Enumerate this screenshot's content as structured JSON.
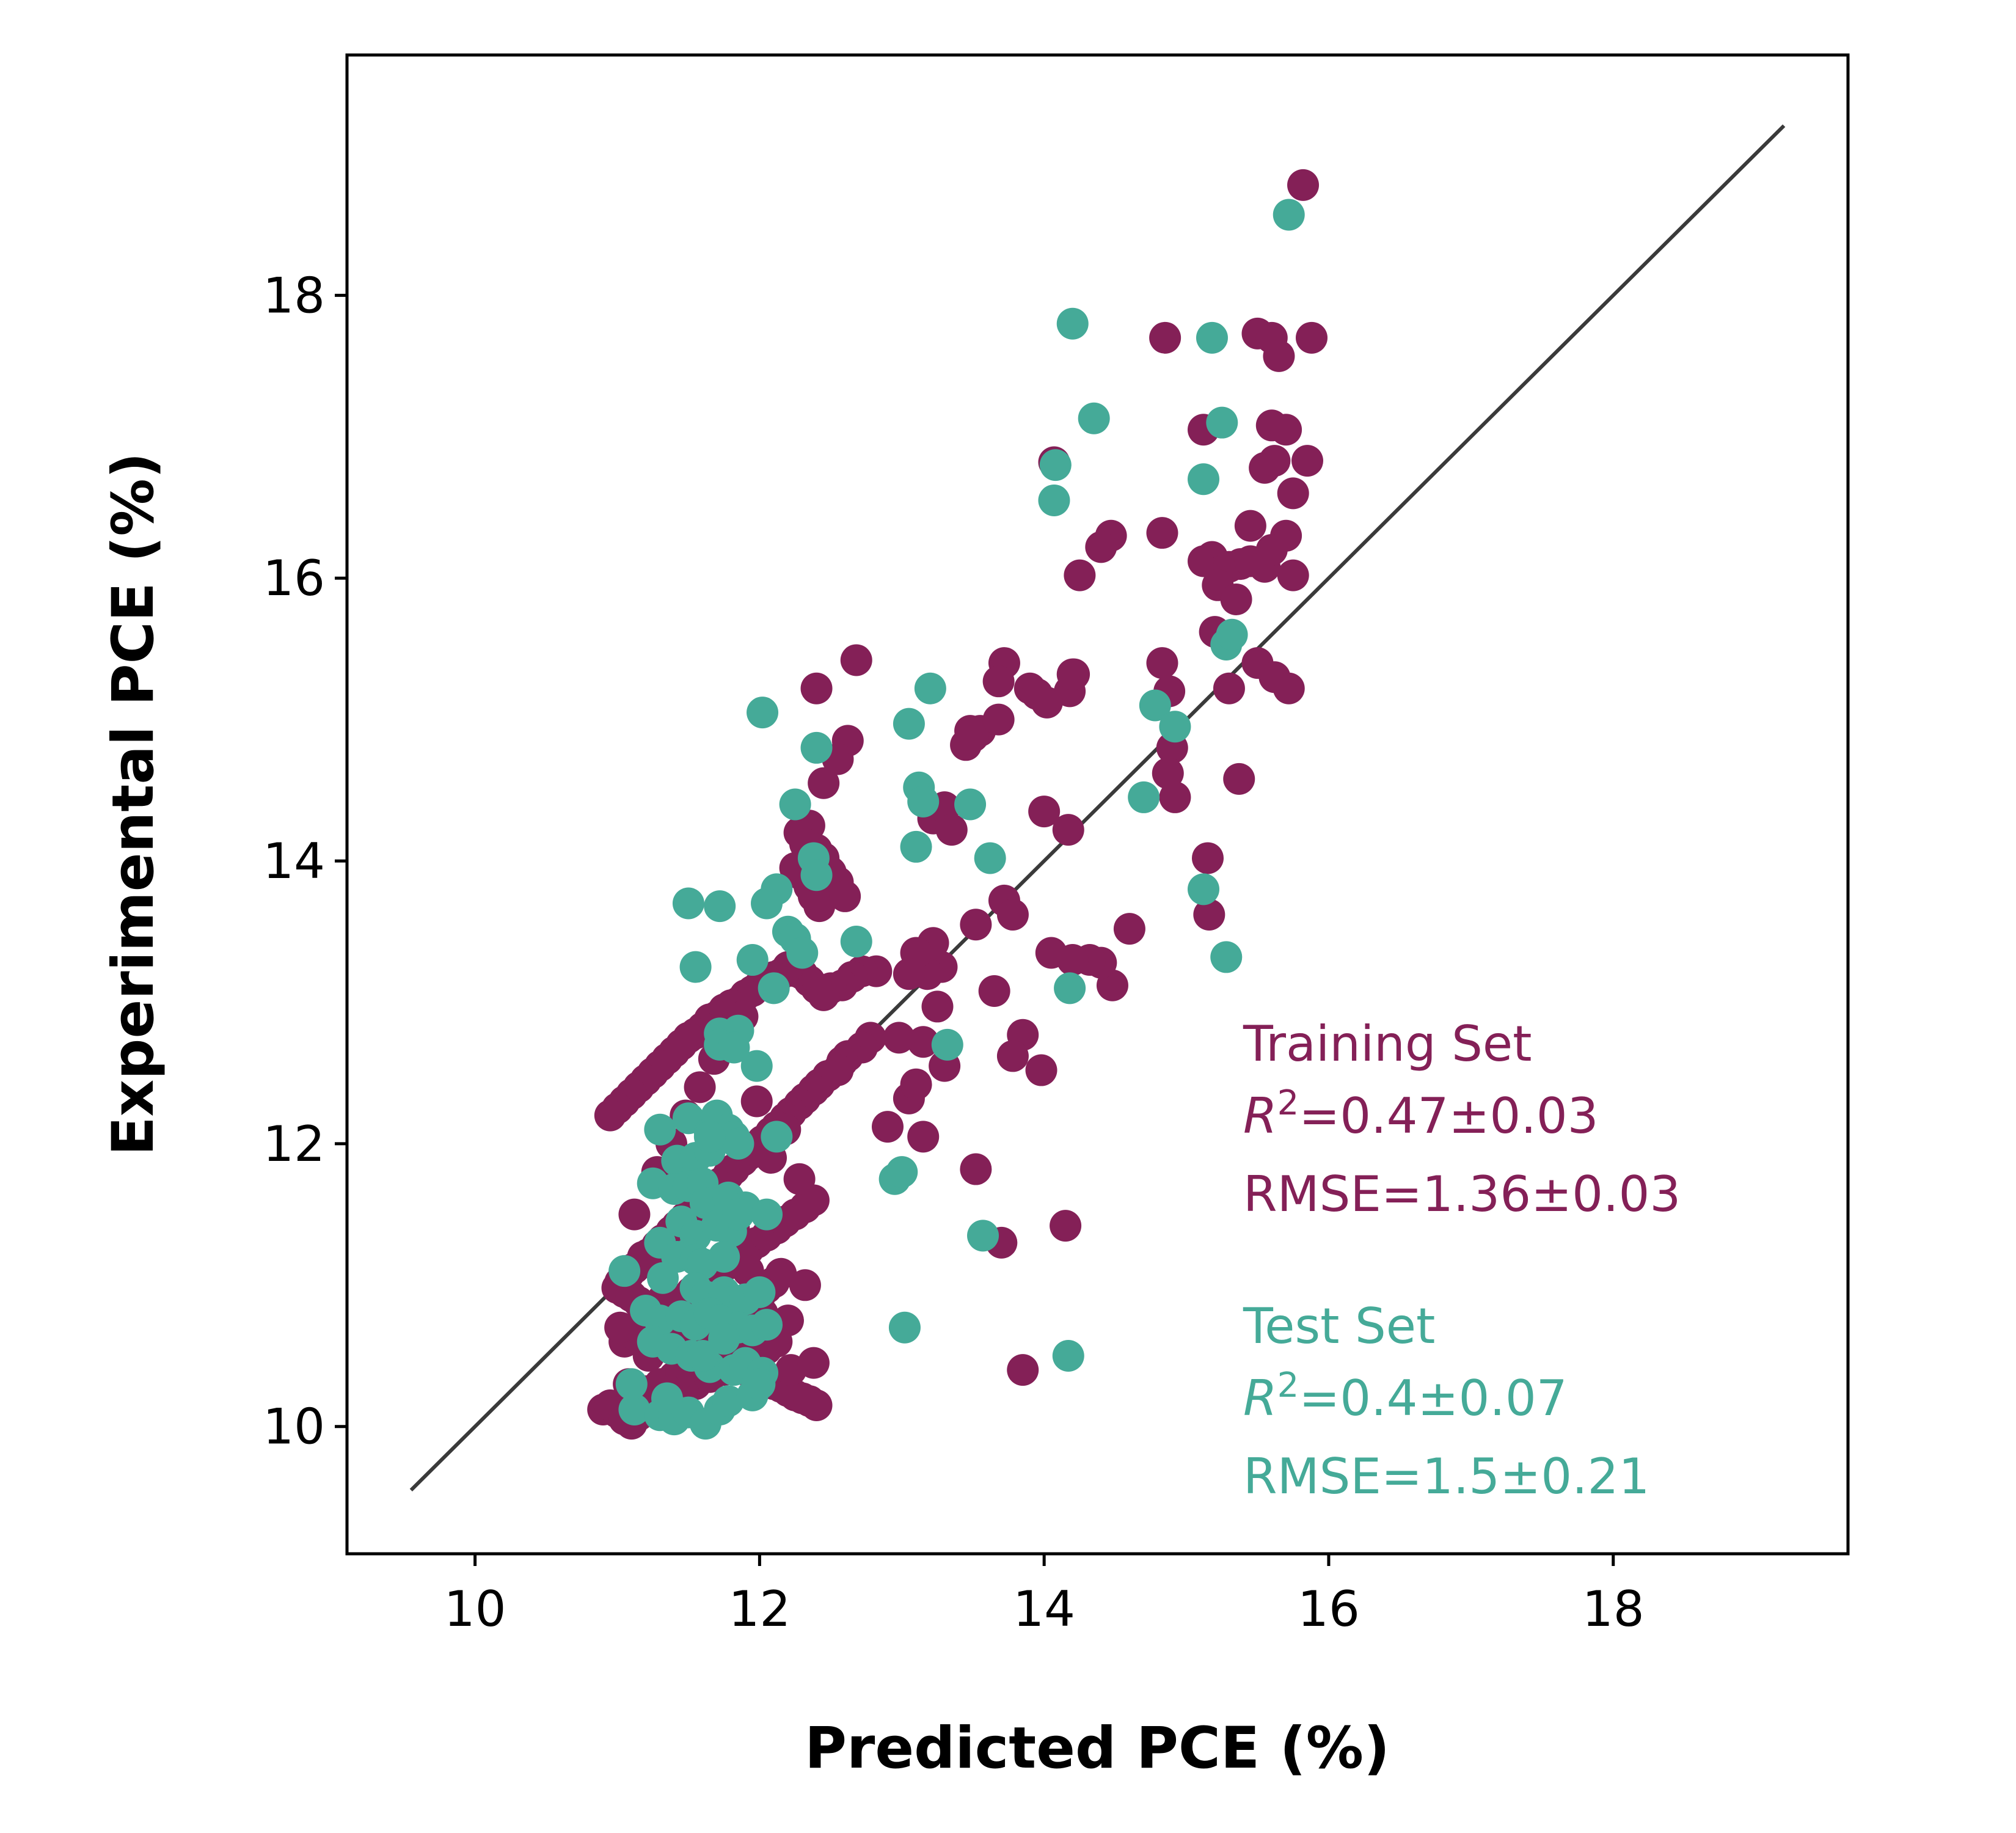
{
  "chart_data": {
    "type": "scatter",
    "xlabel": "Predicted PCE (%)",
    "ylabel": "Experimental PCE (%)",
    "xlim": [
      9.1,
      19.65
    ],
    "ylim": [
      9.1,
      19.7
    ],
    "xticks": [
      10,
      12,
      14,
      16,
      18
    ],
    "yticks": [
      10,
      12,
      14,
      16,
      18
    ],
    "xtick_labels": [
      "10",
      "12",
      "14",
      "16",
      "18"
    ],
    "ytick_labels": [
      "10",
      "12",
      "14",
      "16",
      "18"
    ],
    "grid": false,
    "reference_line": {
      "x": [
        9.55,
        19.2
      ],
      "y": [
        9.55,
        19.2
      ],
      "color": "#3a3a3a"
    },
    "annotations": {
      "training": {
        "title": "Training Set",
        "r2_label": "R",
        "r2_sup": "2",
        "r2_value": "=0.47±0.03",
        "rmse": "RMSE=1.36±0.03",
        "color": "#842057"
      },
      "test": {
        "title": "Test Set",
        "r2_label": "R",
        "r2_sup": "2",
        "r2_value": "=0.4±0.07",
        "rmse": "RMSE=1.5±0.21",
        "color": "#45aa98"
      }
    },
    "series": [
      {
        "color": "#842057",
        "x": [
          15.82,
          15.5,
          15.6,
          15.88,
          14.85,
          15.65,
          15.12,
          15.6,
          15.7,
          15.85,
          15.55,
          15.62,
          15.75,
          14.07,
          14.47,
          14.4,
          14.83,
          15.45,
          15.7,
          15.12,
          15.18,
          15.25,
          15.3,
          15.38,
          15.45,
          15.22,
          15.55,
          15.6,
          15.75,
          14.25,
          15.35,
          15.2,
          15.5,
          15.62,
          15.72,
          15.3,
          14.83,
          14.88,
          14.9,
          15.37,
          14.87,
          14.92,
          15.15,
          15.16,
          14.6,
          14.48,
          14.4,
          14.32,
          14.2,
          14.05,
          14.17,
          14.21,
          14.18,
          14.2,
          13.72,
          13.68,
          13.9,
          13.95,
          14.02,
          13.55,
          13.5,
          13.48,
          13.68,
          13.72,
          13.78,
          13.85,
          13.78,
          13.98,
          13.45,
          13.52,
          13.65,
          14.0,
          14.15,
          13.85,
          13.7,
          13.52,
          13.22,
          13.3,
          13.35,
          13.28,
          13.22,
          13.18,
          13.1,
          13.05,
          13.15,
          13.25,
          13.3,
          12.98,
          12.9,
          13.05,
          13.1,
          13.15,
          12.68,
          12.62,
          12.55,
          12.45,
          12.4,
          12.35,
          12.3,
          12.28,
          12.32,
          12.4,
          12.45,
          12.5,
          12.55,
          12.6,
          12.42,
          12.38,
          12.35,
          12.3,
          12.25,
          12.82,
          12.72,
          12.65,
          12.58,
          12.5,
          12.45,
          12.4,
          12.35,
          12.3,
          12.25,
          12.2,
          12.15,
          12.1,
          12.05,
          12.0,
          11.95,
          11.9,
          11.85,
          11.8,
          11.75,
          11.7,
          11.65,
          11.6,
          11.55,
          11.5,
          11.45,
          11.4,
          11.35,
          11.3,
          11.25,
          11.2,
          11.15,
          11.1,
          11.05,
          11.0,
          10.95,
          12.78,
          12.72,
          12.62,
          12.58,
          12.55,
          12.48,
          12.42,
          12.38,
          12.32,
          12.28,
          12.22,
          12.18,
          12.12,
          12.08,
          12.02,
          11.98,
          11.92,
          11.88,
          11.82,
          11.78,
          11.72,
          11.68,
          11.62,
          11.58,
          11.52,
          11.48,
          11.42,
          11.38,
          11.32,
          11.28,
          11.22,
          11.18,
          11.12,
          11.08,
          11.02,
          11.0,
          11.05,
          11.1,
          11.15,
          11.2,
          11.25,
          11.3,
          11.35,
          11.4,
          11.45,
          11.5,
          11.55,
          11.6,
          11.65,
          11.7,
          11.75,
          11.8,
          11.85,
          11.9,
          11.95,
          12.0,
          12.05,
          12.1,
          12.15,
          12.2,
          12.25,
          12.3,
          12.35,
          12.4,
          11.05,
          11.12,
          11.18,
          11.25,
          11.32,
          11.38,
          11.45,
          11.52,
          11.58,
          11.65,
          11.72,
          11.78,
          11.85,
          11.92,
          11.98,
          12.05,
          12.12,
          12.18,
          12.25,
          12.32,
          12.38,
          11.1,
          11.2,
          11.3,
          11.4,
          11.5,
          11.6,
          11.7,
          11.8,
          11.9,
          12.0,
          12.1,
          12.2,
          11.15,
          11.25,
          11.35,
          11.45,
          11.55,
          11.65,
          11.75,
          11.85,
          11.95,
          12.05,
          10.9,
          10.95,
          11.0,
          11.05,
          11.1,
          11.15,
          11.2,
          11.25,
          11.3,
          11.35,
          11.4,
          11.45,
          11.5,
          11.55,
          11.6,
          11.65,
          11.7,
          11.75,
          11.8,
          11.85,
          11.9,
          11.95,
          12.0,
          12.05,
          12.1,
          12.15,
          11.02,
          11.08,
          11.12,
          11.18,
          11.22,
          11.28,
          11.32,
          11.38,
          11.42,
          11.48,
          11.52,
          11.58,
          11.62,
          11.68,
          11.72,
          11.78,
          11.82,
          11.88,
          11.92,
          11.98,
          12.02,
          12.08,
          12.12,
          12.18,
          12.22,
          12.28,
          12.32,
          12.38
        ],
        "y": [
          18.78,
          17.73,
          17.7,
          17.7,
          17.7,
          17.57,
          17.05,
          17.08,
          17.05,
          16.83,
          16.78,
          16.83,
          16.6,
          16.82,
          16.3,
          16.22,
          16.32,
          16.37,
          16.3,
          16.12,
          16.15,
          16.05,
          16.08,
          16.1,
          16.12,
          15.95,
          16.08,
          16.2,
          16.02,
          16.02,
          15.85,
          15.62,
          15.4,
          15.3,
          15.22,
          15.22,
          15.4,
          15.2,
          14.8,
          14.58,
          14.62,
          14.45,
          14.02,
          13.62,
          13.52,
          13.12,
          13.28,
          13.3,
          13.3,
          13.35,
          14.22,
          15.32,
          15.2,
          15.32,
          15.4,
          15.27,
          15.22,
          15.18,
          15.12,
          14.92,
          14.88,
          14.92,
          15.0,
          13.72,
          13.62,
          12.77,
          12.62,
          12.52,
          14.82,
          13.55,
          13.08,
          14.35,
          11.42,
          10.4,
          11.3,
          11.82,
          14.3,
          14.38,
          14.22,
          13.25,
          13.42,
          13.2,
          13.35,
          13.2,
          12.72,
          12.97,
          12.55,
          12.75,
          12.12,
          12.32,
          12.42,
          12.05,
          15.42,
          14.85,
          14.72,
          14.55,
          15.22,
          14.25,
          14.18,
          14.2,
          14.12,
          14.08,
          14.02,
          13.92,
          13.85,
          13.75,
          13.68,
          13.75,
          13.82,
          13.9,
          13.95,
          13.22,
          13.22,
          13.18,
          13.12,
          13.1,
          13.05,
          13.1,
          13.15,
          13.2,
          13.22,
          13.25,
          13.2,
          13.18,
          13.15,
          13.12,
          13.08,
          13.05,
          13.0,
          12.98,
          12.95,
          12.9,
          12.88,
          12.82,
          12.78,
          12.75,
          12.7,
          12.65,
          12.6,
          12.55,
          12.5,
          12.45,
          12.4,
          12.35,
          12.3,
          12.25,
          12.2,
          12.75,
          12.68,
          12.62,
          12.58,
          12.52,
          12.48,
          12.42,
          12.38,
          12.32,
          12.28,
          12.22,
          12.18,
          12.12,
          12.08,
          12.02,
          11.98,
          11.92,
          11.88,
          11.82,
          11.78,
          11.72,
          11.68,
          11.62,
          11.58,
          11.52,
          11.48,
          11.42,
          11.38,
          11.32,
          11.28,
          11.22,
          11.18,
          11.12,
          11.08,
          11.02,
          10.98,
          10.95,
          10.92,
          10.88,
          10.85,
          10.82,
          10.78,
          10.75,
          10.72,
          10.68,
          10.65,
          10.62,
          10.58,
          10.55,
          10.52,
          10.48,
          10.45,
          10.42,
          10.4,
          10.38,
          10.35,
          10.32,
          10.3,
          10.28,
          10.25,
          10.22,
          10.2,
          10.18,
          10.15,
          10.6,
          10.65,
          10.7,
          10.75,
          10.8,
          10.85,
          10.9,
          10.95,
          11.0,
          11.05,
          11.1,
          11.15,
          11.2,
          11.25,
          11.3,
          11.35,
          11.4,
          11.45,
          11.5,
          11.55,
          11.6,
          10.2,
          10.25,
          10.3,
          10.35,
          10.4,
          10.45,
          10.5,
          10.55,
          10.6,
          10.65,
          10.7,
          10.75,
          10.1,
          10.15,
          10.2,
          10.25,
          10.3,
          10.35,
          10.4,
          10.45,
          10.5,
          10.55,
          10.12,
          10.15,
          10.1,
          10.05,
          10.02,
          10.08,
          10.12,
          10.18,
          10.22,
          10.28,
          10.32,
          10.38,
          10.42,
          10.48,
          10.52,
          10.58,
          10.62,
          10.68,
          10.72,
          10.78,
          10.82,
          10.88,
          10.92,
          10.98,
          11.02,
          11.08,
          10.7,
          10.3,
          11.5,
          11.2,
          10.5,
          11.8,
          10.9,
          12.0,
          11.3,
          12.2,
          11.6,
          12.4,
          11.0,
          12.6,
          11.7,
          12.8,
          11.4,
          12.9,
          11.1,
          12.3,
          10.8,
          11.9,
          10.6,
          12.1,
          10.4,
          11.75,
          11.0,
          10.45
        ]
      },
      {
        "color": "#45aa98",
        "x": [
          15.72,
          14.2,
          15.18,
          14.35,
          15.25,
          14.08,
          14.07,
          15.12,
          15.28,
          15.32,
          14.78,
          14.92,
          14.7,
          15.12,
          15.28,
          14.18,
          13.2,
          13.05,
          12.02,
          12.4,
          12.25,
          13.12,
          13.15,
          13.1,
          13.48,
          13.62,
          12.38,
          12.4,
          12.68,
          11.5,
          11.72,
          12.12,
          12.05,
          12.2,
          12.25,
          12.3,
          11.55,
          11.95,
          12.1,
          13.32,
          11.72,
          11.85,
          11.72,
          11.82,
          12.12,
          11.3,
          11.5,
          11.65,
          11.7,
          11.78,
          11.82,
          11.42,
          11.55,
          11.65,
          11.85,
          11.25,
          11.4,
          11.5,
          11.6,
          11.62,
          11.78,
          11.9,
          11.45,
          11.55,
          11.7,
          11.8,
          11.3,
          11.5,
          11.42,
          11.55,
          11.6,
          11.75,
          11.55,
          11.62,
          11.75,
          11.8,
          11.9,
          12.0,
          11.2,
          11.3,
          11.45,
          11.55,
          11.65,
          11.72,
          11.85,
          11.95,
          12.05,
          11.05,
          11.25,
          11.38,
          11.52,
          11.65,
          11.82,
          11.9,
          12.02,
          11.12,
          11.3,
          11.4,
          11.5,
          11.62,
          11.72,
          11.78,
          11.95,
          12.0,
          11.1,
          11.35,
          11.6,
          11.75,
          11.85,
          12.05,
          11.98,
          11.32,
          11.65,
          12.95,
          13.0,
          13.02,
          13.57,
          14.17
        ],
        "y": [
          18.57,
          17.8,
          17.7,
          17.13,
          17.1,
          16.8,
          16.55,
          16.7,
          15.53,
          15.6,
          15.1,
          14.95,
          14.45,
          13.8,
          13.32,
          13.1,
          15.22,
          14.97,
          15.05,
          14.8,
          14.4,
          14.52,
          14.42,
          14.1,
          14.4,
          14.02,
          14.02,
          13.9,
          13.43,
          13.7,
          13.68,
          13.8,
          13.7,
          13.5,
          13.45,
          13.35,
          13.25,
          13.3,
          13.1,
          12.7,
          12.78,
          12.8,
          12.7,
          12.68,
          12.05,
          12.1,
          12.18,
          12.08,
          12.2,
          12.1,
          12.05,
          11.88,
          11.9,
          11.95,
          12.0,
          11.72,
          11.68,
          11.7,
          11.72,
          11.58,
          11.62,
          11.55,
          11.45,
          11.35,
          11.42,
          11.38,
          11.3,
          11.22,
          11.2,
          11.18,
          11.15,
          11.2,
          10.98,
          10.92,
          10.95,
          10.88,
          10.9,
          10.95,
          10.82,
          10.75,
          10.78,
          10.72,
          10.8,
          10.75,
          10.7,
          10.68,
          10.72,
          11.1,
          10.6,
          10.55,
          10.5,
          10.42,
          10.4,
          10.45,
          10.38,
          10.12,
          10.08,
          10.05,
          10.1,
          10.02,
          10.12,
          10.18,
          10.22,
          10.3,
          10.3,
          10.2,
          10.5,
          10.62,
          11.5,
          11.5,
          12.55,
          11.05,
          12.05,
          11.75,
          11.8,
          10.7,
          11.35,
          10.5
        ]
      }
    ]
  }
}
